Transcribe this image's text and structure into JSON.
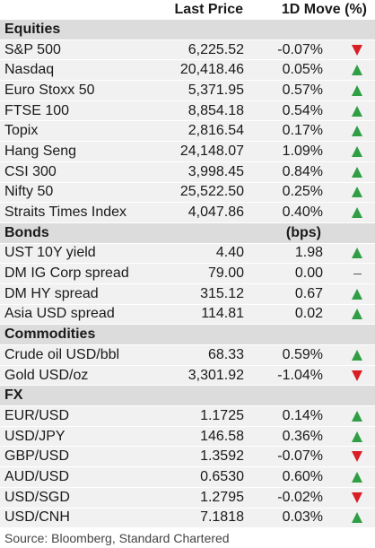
{
  "header": {
    "price_label": "Last Price",
    "move_label": "1D Move (%)"
  },
  "sections": [
    {
      "title": "Equities",
      "unit": "",
      "rows": [
        {
          "name": "S&P 500",
          "price": "6,225.52",
          "move": "-0.07%",
          "dir": "down"
        },
        {
          "name": "Nasdaq",
          "price": "20,418.46",
          "move": "0.05%",
          "dir": "up"
        },
        {
          "name": "Euro Stoxx 50",
          "price": "5,371.95",
          "move": "0.57%",
          "dir": "up"
        },
        {
          "name": "FTSE 100",
          "price": "8,854.18",
          "move": "0.54%",
          "dir": "up"
        },
        {
          "name": "Topix",
          "price": "2,816.54",
          "move": "0.17%",
          "dir": "up"
        },
        {
          "name": "Hang Seng",
          "price": "24,148.07",
          "move": "1.09%",
          "dir": "up"
        },
        {
          "name": "CSI 300",
          "price": "3,998.45",
          "move": "0.84%",
          "dir": "up"
        },
        {
          "name": "Nifty 50",
          "price": "25,522.50",
          "move": "0.25%",
          "dir": "up"
        },
        {
          "name": "Straits Times Index",
          "price": "4,047.86",
          "move": "0.40%",
          "dir": "up"
        }
      ]
    },
    {
      "title": "Bonds",
      "unit": "(bps)",
      "rows": [
        {
          "name": "UST 10Y yield",
          "price": "4.40",
          "move": "1.98",
          "dir": "up"
        },
        {
          "name": "DM IG Corp spread",
          "price": "79.00",
          "move": "0.00",
          "dir": "flat"
        },
        {
          "name": "DM HY spread",
          "price": "315.12",
          "move": "0.67",
          "dir": "up"
        },
        {
          "name": "Asia USD spread",
          "price": "114.81",
          "move": "0.02",
          "dir": "up"
        }
      ]
    },
    {
      "title": "Commodities",
      "unit": "",
      "rows": [
        {
          "name": "Crude oil USD/bbl",
          "price": "68.33",
          "move": "0.59%",
          "dir": "up"
        },
        {
          "name": "Gold USD/oz",
          "price": "3,301.92",
          "move": "-1.04%",
          "dir": "down"
        }
      ]
    },
    {
      "title": "FX",
      "unit": "",
      "rows": [
        {
          "name": "EUR/USD",
          "price": "1.1725",
          "move": "0.14%",
          "dir": "up"
        },
        {
          "name": "USD/JPY",
          "price": "146.58",
          "move": "0.36%",
          "dir": "up"
        },
        {
          "name": "GBP/USD",
          "price": "1.3592",
          "move": "-0.07%",
          "dir": "down"
        },
        {
          "name": "AUD/USD",
          "price": "0.6530",
          "move": "0.60%",
          "dir": "up"
        },
        {
          "name": "USD/SGD",
          "price": "1.2795",
          "move": "-0.02%",
          "dir": "down"
        },
        {
          "name": "USD/CNH",
          "price": "7.1818",
          "move": "0.03%",
          "dir": "up"
        }
      ]
    }
  ],
  "source": "Source: Bloomberg, Standard Chartered",
  "colors": {
    "up": "#2f9e44",
    "down": "#d91f26",
    "section_bg": "#dcdcdc",
    "row_bg": "#f1f1f1"
  }
}
